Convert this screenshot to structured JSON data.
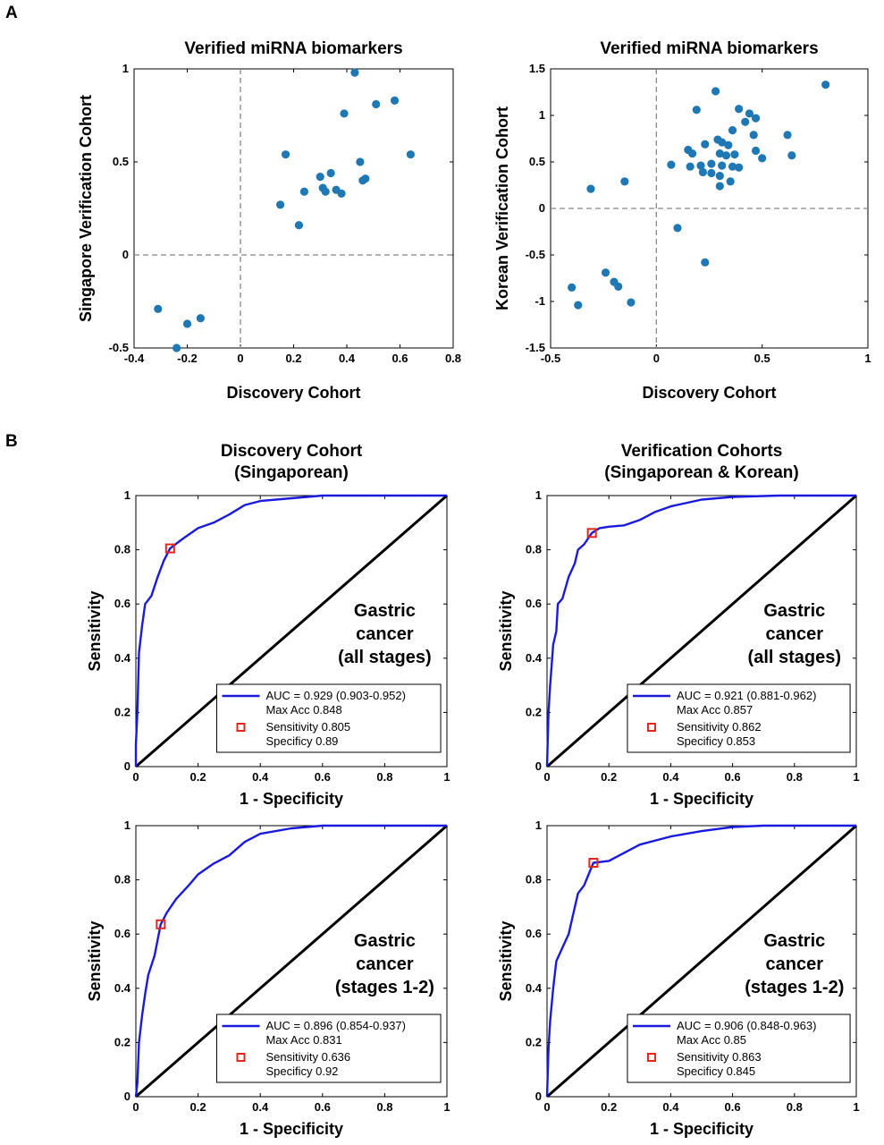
{
  "panels": {
    "a": "A",
    "b": "B"
  },
  "chart_data": [
    {
      "type": "scatter",
      "title": "Verified miRNA biomarkers",
      "xlabel": "Discovery Cohort",
      "ylabel": "Singapore Verification Cohort",
      "xlim": [
        -0.4,
        0.8
      ],
      "ylim": [
        -0.5,
        1
      ],
      "xticks": [
        "-0.4",
        "-0.2",
        "0",
        "0.2",
        "0.4",
        "0.6",
        "0.8"
      ],
      "yticks": [
        "-0.5",
        "0",
        "0.5",
        "1"
      ],
      "reference_lines": {
        "x": 0,
        "y": 0,
        "style": "dashed"
      },
      "color": "#1f77b4",
      "points": [
        [
          0.43,
          0.98
        ],
        [
          0.58,
          0.83
        ],
        [
          0.51,
          0.81
        ],
        [
          0.39,
          0.76
        ],
        [
          0.17,
          0.54
        ],
        [
          0.64,
          0.54
        ],
        [
          0.45,
          0.5
        ],
        [
          0.34,
          0.44
        ],
        [
          0.3,
          0.42
        ],
        [
          0.47,
          0.41
        ],
        [
          0.46,
          0.4
        ],
        [
          0.36,
          0.35
        ],
        [
          0.31,
          0.36
        ],
        [
          0.32,
          0.34
        ],
        [
          0.24,
          0.34
        ],
        [
          0.38,
          0.33
        ],
        [
          0.15,
          0.27
        ],
        [
          0.22,
          0.16
        ],
        [
          -0.31,
          -0.29
        ],
        [
          -0.15,
          -0.34
        ],
        [
          -0.2,
          -0.37
        ],
        [
          -0.24,
          -0.5
        ]
      ]
    },
    {
      "type": "scatter",
      "title": "Verified miRNA biomarkers",
      "xlabel": "Discovery Cohort",
      "ylabel": "Korean Verification Cohort",
      "xlim": [
        -0.5,
        1
      ],
      "ylim": [
        -1.5,
        1.5
      ],
      "xticks": [
        "-0.5",
        "0",
        "0.5",
        "1"
      ],
      "yticks": [
        "-1.5",
        "-1",
        "-0.5",
        "0",
        "0.5",
        "1",
        "1.5"
      ],
      "reference_lines": {
        "x": 0,
        "y": 0,
        "style": "dashed"
      },
      "color": "#1f77b4",
      "points": [
        [
          0.8,
          1.33
        ],
        [
          0.28,
          1.26
        ],
        [
          0.19,
          1.06
        ],
        [
          0.39,
          1.07
        ],
        [
          0.44,
          1.02
        ],
        [
          0.47,
          0.97
        ],
        [
          0.42,
          0.93
        ],
        [
          0.36,
          0.84
        ],
        [
          0.46,
          0.79
        ],
        [
          0.62,
          0.79
        ],
        [
          0.29,
          0.74
        ],
        [
          0.31,
          0.71
        ],
        [
          0.23,
          0.69
        ],
        [
          0.34,
          0.68
        ],
        [
          0.15,
          0.63
        ],
        [
          0.17,
          0.59
        ],
        [
          0.3,
          0.59
        ],
        [
          0.47,
          0.62
        ],
        [
          0.33,
          0.57
        ],
        [
          0.37,
          0.58
        ],
        [
          0.5,
          0.54
        ],
        [
          0.64,
          0.57
        ],
        [
          0.07,
          0.47
        ],
        [
          0.16,
          0.45
        ],
        [
          0.21,
          0.46
        ],
        [
          0.26,
          0.48
        ],
        [
          0.31,
          0.46
        ],
        [
          0.36,
          0.45
        ],
        [
          0.39,
          0.44
        ],
        [
          0.22,
          0.39
        ],
        [
          0.26,
          0.38
        ],
        [
          0.3,
          0.35
        ],
        [
          0.35,
          0.29
        ],
        [
          0.3,
          0.24
        ],
        [
          -0.31,
          0.21
        ],
        [
          -0.15,
          0.29
        ],
        [
          0.1,
          -0.21
        ],
        [
          0.23,
          -0.58
        ],
        [
          -0.24,
          -0.69
        ],
        [
          -0.2,
          -0.79
        ],
        [
          -0.18,
          -0.84
        ],
        [
          -0.4,
          -0.85
        ],
        [
          -0.37,
          -1.04
        ],
        [
          -0.12,
          -1.01
        ]
      ]
    },
    {
      "type": "line",
      "title": [
        "Discovery Cohort",
        "(Singaporean)"
      ],
      "xlabel": "1 - Specificity",
      "ylabel": "Sensitivity",
      "xlim": [
        0,
        1
      ],
      "ylim": [
        0,
        1
      ],
      "xticks": [
        "0",
        "0.2",
        "0.4",
        "0.6",
        "0.8",
        "1"
      ],
      "yticks": [
        "0",
        "0.2",
        "0.4",
        "0.6",
        "0.8",
        "1"
      ],
      "annotation": [
        "Gastric",
        "cancer",
        "(all stages)"
      ],
      "roc": [
        [
          0,
          0
        ],
        [
          0,
          0.08
        ],
        [
          0.005,
          0.2
        ],
        [
          0.01,
          0.42
        ],
        [
          0.02,
          0.52
        ],
        [
          0.03,
          0.6
        ],
        [
          0.05,
          0.63
        ],
        [
          0.07,
          0.7
        ],
        [
          0.09,
          0.76
        ],
        [
          0.11,
          0.805
        ],
        [
          0.15,
          0.84
        ],
        [
          0.2,
          0.88
        ],
        [
          0.25,
          0.9
        ],
        [
          0.3,
          0.93
        ],
        [
          0.35,
          0.965
        ],
        [
          0.4,
          0.98
        ],
        [
          0.5,
          0.99
        ],
        [
          0.6,
          1
        ],
        [
          1,
          1
        ]
      ],
      "diagonal": [
        [
          0,
          0
        ],
        [
          1,
          1
        ]
      ],
      "optimal_point": [
        0.11,
        0.805
      ],
      "legend": {
        "auc": "AUC = 0.929 (0.903-0.952)",
        "max_acc": "Max Acc 0.848",
        "sensitivity": "Sensitivity 0.805",
        "specificity": "Specificy 0.89"
      },
      "colors": {
        "roc": "#1a1adf",
        "diagonal": "#000000",
        "marker": "#e3261b"
      }
    },
    {
      "type": "line",
      "title": [
        "Verification Cohorts",
        "(Singaporean & Korean)"
      ],
      "xlabel": "1 - Specificity",
      "ylabel": "Sensitivity",
      "xlim": [
        0,
        1
      ],
      "ylim": [
        0,
        1
      ],
      "xticks": [
        "0",
        "0.2",
        "0.4",
        "0.6",
        "0.8",
        "1"
      ],
      "yticks": [
        "0",
        "0.2",
        "0.4",
        "0.6",
        "0.8",
        "1"
      ],
      "annotation": [
        "Gastric",
        "cancer",
        "(all stages)"
      ],
      "roc": [
        [
          0,
          0
        ],
        [
          0.005,
          0.2
        ],
        [
          0.01,
          0.3
        ],
        [
          0.02,
          0.45
        ],
        [
          0.03,
          0.5
        ],
        [
          0.035,
          0.6
        ],
        [
          0.05,
          0.62
        ],
        [
          0.07,
          0.7
        ],
        [
          0.09,
          0.75
        ],
        [
          0.1,
          0.8
        ],
        [
          0.12,
          0.82
        ],
        [
          0.145,
          0.862
        ],
        [
          0.17,
          0.88
        ],
        [
          0.2,
          0.885
        ],
        [
          0.25,
          0.89
        ],
        [
          0.3,
          0.91
        ],
        [
          0.35,
          0.94
        ],
        [
          0.4,
          0.96
        ],
        [
          0.5,
          0.985
        ],
        [
          0.6,
          0.995
        ],
        [
          0.75,
          1
        ],
        [
          1,
          1
        ]
      ],
      "diagonal": [
        [
          0,
          0
        ],
        [
          1,
          1
        ]
      ],
      "optimal_point": [
        0.145,
        0.862
      ],
      "legend": {
        "auc": "AUC = 0.921 (0.881-0.962)",
        "max_acc": "Max Acc 0.857",
        "sensitivity": "Sensitivity 0.862",
        "specificity": "Specificy 0.853"
      },
      "colors": {
        "roc": "#1a1adf",
        "diagonal": "#000000",
        "marker": "#e3261b"
      }
    },
    {
      "type": "line",
      "title": [],
      "xlabel": "1 - Specificity",
      "ylabel": "Sensitivity",
      "xlim": [
        0,
        1
      ],
      "ylim": [
        0,
        1
      ],
      "xticks": [
        "0",
        "0.2",
        "0.4",
        "0.6",
        "0.8",
        "1"
      ],
      "yticks": [
        "0",
        "0.2",
        "0.4",
        "0.6",
        "0.8",
        "1"
      ],
      "annotation": [
        "Gastric",
        "cancer",
        "(stages 1-2)"
      ],
      "roc": [
        [
          0,
          0
        ],
        [
          0.005,
          0.05
        ],
        [
          0.01,
          0.2
        ],
        [
          0.02,
          0.3
        ],
        [
          0.03,
          0.38
        ],
        [
          0.04,
          0.45
        ],
        [
          0.06,
          0.52
        ],
        [
          0.08,
          0.636
        ],
        [
          0.1,
          0.68
        ],
        [
          0.13,
          0.73
        ],
        [
          0.17,
          0.78
        ],
        [
          0.2,
          0.82
        ],
        [
          0.25,
          0.86
        ],
        [
          0.3,
          0.89
        ],
        [
          0.35,
          0.94
        ],
        [
          0.4,
          0.97
        ],
        [
          0.5,
          0.99
        ],
        [
          0.6,
          1
        ],
        [
          1,
          1
        ]
      ],
      "diagonal": [
        [
          0,
          0
        ],
        [
          1,
          1
        ]
      ],
      "optimal_point": [
        0.08,
        0.636
      ],
      "legend": {
        "auc": "AUC = 0.896 (0.854-0.937)",
        "max_acc": "Max Acc 0.831",
        "sensitivity": "Sensitivity 0.636",
        "specificity": "Specificy 0.92"
      },
      "colors": {
        "roc": "#1a1adf",
        "diagonal": "#000000",
        "marker": "#e3261b"
      }
    },
    {
      "type": "line",
      "title": [],
      "xlabel": "1 - Specificity",
      "ylabel": "Sensitivity",
      "xlim": [
        0,
        1
      ],
      "ylim": [
        0,
        1
      ],
      "xticks": [
        "0",
        "0.2",
        "0.4",
        "0.6",
        "0.8",
        "1"
      ],
      "yticks": [
        "0",
        "0.2",
        "0.4",
        "0.6",
        "0.8",
        "1"
      ],
      "annotation": [
        "Gastric",
        "cancer",
        "(stages 1-2)"
      ],
      "roc": [
        [
          0,
          0
        ],
        [
          0.005,
          0.18
        ],
        [
          0.01,
          0.28
        ],
        [
          0.02,
          0.4
        ],
        [
          0.03,
          0.5
        ],
        [
          0.05,
          0.55
        ],
        [
          0.07,
          0.6
        ],
        [
          0.1,
          0.75
        ],
        [
          0.12,
          0.78
        ],
        [
          0.15,
          0.863
        ],
        [
          0.2,
          0.87
        ],
        [
          0.25,
          0.9
        ],
        [
          0.3,
          0.93
        ],
        [
          0.4,
          0.96
        ],
        [
          0.5,
          0.98
        ],
        [
          0.6,
          0.995
        ],
        [
          0.7,
          1
        ],
        [
          1,
          1
        ]
      ],
      "diagonal": [
        [
          0,
          0
        ],
        [
          1,
          1
        ]
      ],
      "optimal_point": [
        0.15,
        0.863
      ],
      "legend": {
        "auc": "AUC = 0.906 (0.848-0.963)",
        "max_acc": "Max Acc 0.85",
        "sensitivity": "Sensitivity 0.863",
        "specificity": "Specificy 0.845"
      },
      "colors": {
        "roc": "#1a1adf",
        "diagonal": "#000000",
        "marker": "#e3261b"
      }
    }
  ]
}
